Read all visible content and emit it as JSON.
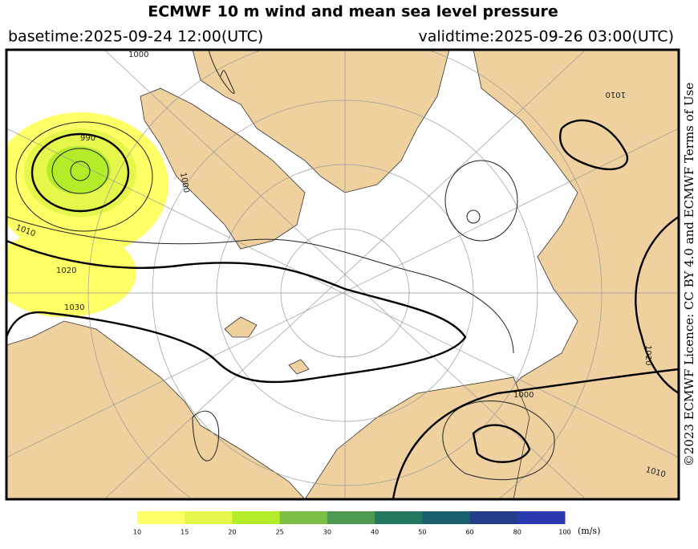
{
  "title": "ECMWF 10 m wind and mean sea level pressure",
  "basetime": "basetime:2025-09-24 12:00(UTC)",
  "validtime": "validtime:2025-09-26 03:00(UTC)",
  "licence": "©2023 ECMWF Licence: CC BY 4.0 and ECMWF Terms of Use",
  "contour_labels": [
    "990",
    "1000",
    "1010",
    "1020",
    "1030",
    "1000",
    "1010",
    "1000",
    "1010",
    "1020"
  ],
  "colorbar": {
    "ticks": [
      10,
      15,
      20,
      25,
      30,
      40,
      50,
      60,
      80,
      100
    ],
    "colors": [
      "#ffff66",
      "#e4f74a",
      "#b4ec2a",
      "#7cbf45",
      "#4f9a52",
      "#22785f",
      "#1b6070",
      "#233f8a",
      "#2a39b0"
    ],
    "unit": "(m/s)"
  }
}
